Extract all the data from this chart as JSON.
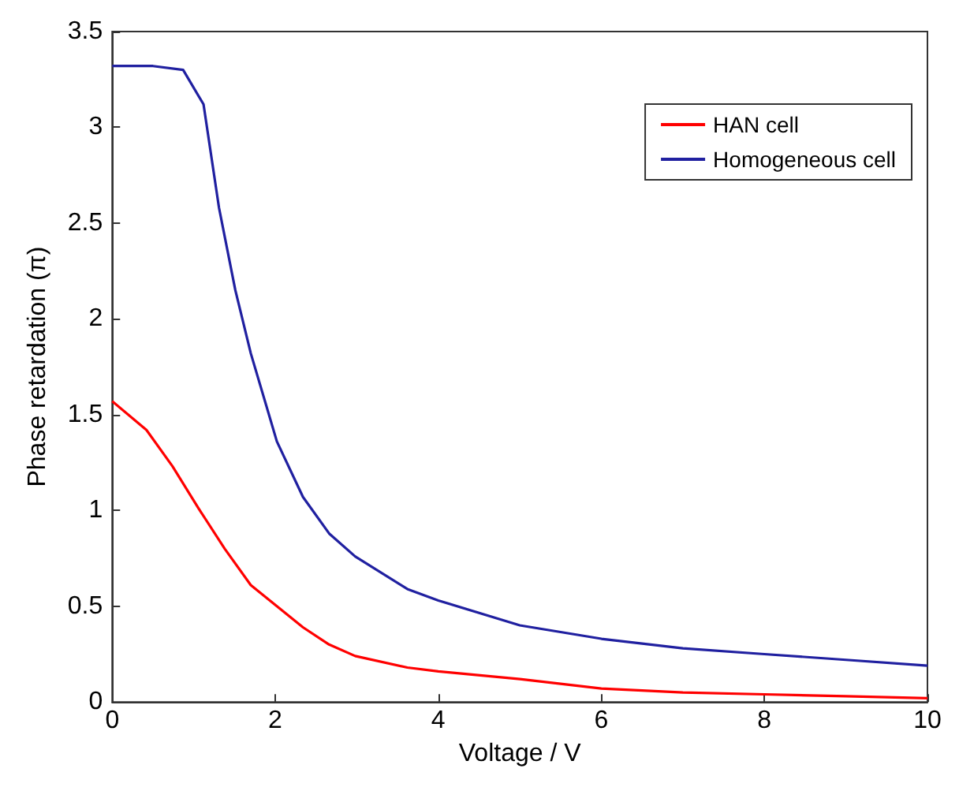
{
  "chart_data": {
    "type": "line",
    "xlabel": "Voltage / V",
    "ylabel": "Phase retardation (π)",
    "xlim": [
      0,
      10
    ],
    "ylim": [
      0,
      3.5
    ],
    "xticks": [
      0,
      2,
      4,
      6,
      8,
      10
    ],
    "yticks": [
      0,
      0.5,
      1,
      1.5,
      2,
      2.5,
      3,
      3.5
    ],
    "grid": false,
    "legend": "top right",
    "marker": "none",
    "line_style": "solid",
    "series": [
      {
        "name": "HAN cell",
        "color": "#ff0000",
        "x": [
          0,
          0.42,
          0.74,
          1.06,
          1.38,
          1.7,
          2.02,
          2.34,
          2.66,
          2.98,
          3.62,
          4,
          5,
          6,
          7,
          8,
          9,
          10
        ],
        "values": [
          1.57,
          1.42,
          1.23,
          1.01,
          0.8,
          0.61,
          0.5,
          0.39,
          0.3,
          0.24,
          0.18,
          0.16,
          0.12,
          0.07,
          0.05,
          0.04,
          0.03,
          0.02
        ]
      },
      {
        "name": "Homogeneous cell",
        "color": "#2020a0",
        "x": [
          0,
          0.5,
          0.87,
          1.12,
          1.31,
          1.51,
          1.7,
          2.02,
          2.34,
          2.66,
          2.98,
          3.62,
          4,
          5,
          6,
          7,
          8,
          9,
          10
        ],
        "values": [
          3.32,
          3.32,
          3.3,
          3.12,
          2.58,
          2.15,
          1.82,
          1.36,
          1.07,
          0.88,
          0.76,
          0.59,
          0.53,
          0.4,
          0.33,
          0.28,
          0.25,
          0.22,
          0.19
        ]
      }
    ]
  }
}
